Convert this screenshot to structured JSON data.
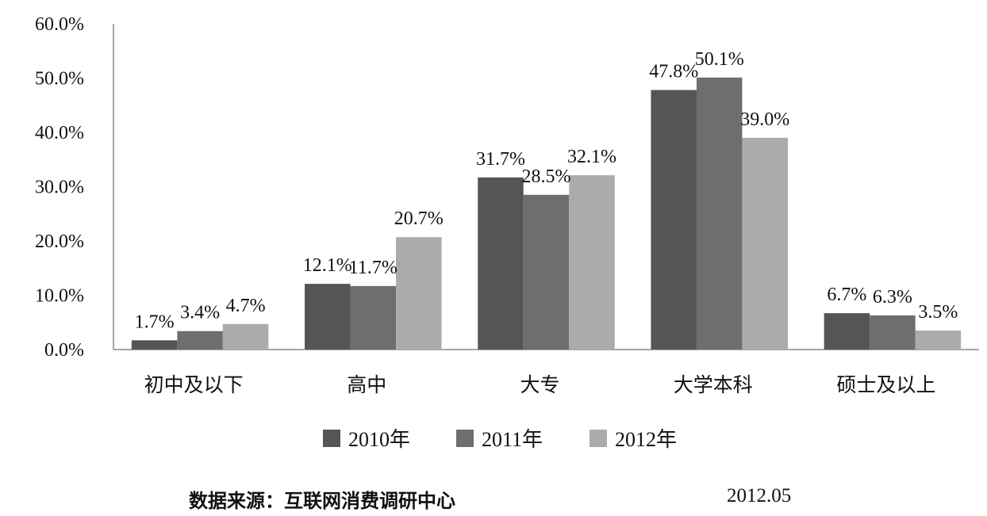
{
  "chart_data": {
    "type": "bar",
    "categories": [
      "初中及以下",
      "高中",
      "大专",
      "大学本科",
      "硕士及以上"
    ],
    "series": [
      {
        "name": "2010年",
        "values": [
          1.7,
          12.1,
          31.7,
          47.8,
          6.7
        ],
        "labels": [
          "1.7%",
          "12.1%",
          "31.7%",
          "47.8%",
          "6.7%"
        ],
        "color": "#555555"
      },
      {
        "name": "2011年",
        "values": [
          3.4,
          11.7,
          28.5,
          50.1,
          6.3
        ],
        "labels": [
          "3.4%",
          "11.7%",
          "28.5%",
          "50.1%",
          "6.3%"
        ],
        "color": "#6e6e6e"
      },
      {
        "name": "2012年",
        "values": [
          4.7,
          20.7,
          32.1,
          39.0,
          3.5
        ],
        "labels": [
          "4.7%",
          "20.7%",
          "32.1%",
          "39.0%",
          "3.5%"
        ],
        "color": "#ababab"
      }
    ],
    "yticks": [
      "0.0%",
      "10.0%",
      "20.0%",
      "30.0%",
      "40.0%",
      "50.0%",
      "60.0%"
    ],
    "ylim": [
      0,
      60
    ],
    "grid": false,
    "legend_position": "bottom"
  },
  "footer": {
    "source": "数据来源：互联网消费调研中心",
    "date": "2012.05"
  }
}
